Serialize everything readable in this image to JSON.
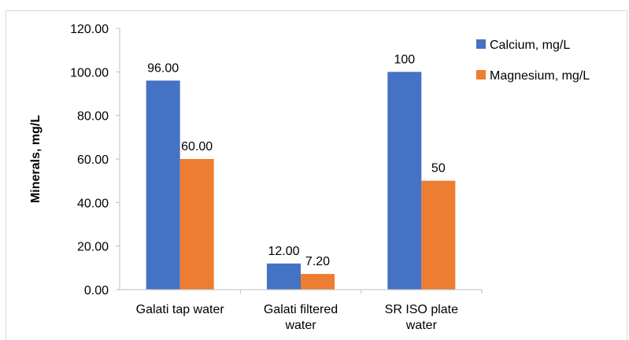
{
  "chart_data": {
    "type": "bar",
    "title": "",
    "xlabel": "",
    "ylabel": "Minerals, mg/L",
    "ylim": [
      0,
      120
    ],
    "yticks": [
      "0.00",
      "20.00",
      "40.00",
      "60.00",
      "80.00",
      "100.00",
      "120.00"
    ],
    "grid": false,
    "legend_position": "top-right",
    "categories": [
      [
        "Galati tap water"
      ],
      [
        "Galati filtered",
        "water"
      ],
      [
        "SR ISO plate",
        "water"
      ]
    ],
    "series": [
      {
        "name": "Calcium, mg/L",
        "color": "#4472C4",
        "values": [
          96,
          12,
          100
        ],
        "labels": [
          "96.00",
          "12.00",
          "100"
        ]
      },
      {
        "name": "Magnesium, mg/L",
        "color": "#ED7D31",
        "values": [
          60,
          7.2,
          50
        ],
        "labels": [
          "60.00",
          "7.20",
          "50"
        ]
      }
    ]
  }
}
